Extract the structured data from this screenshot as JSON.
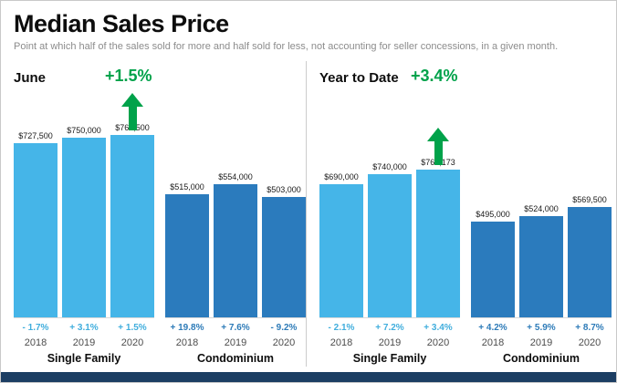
{
  "header": {
    "title": "Median Sales Price",
    "subtitle": "Point at which half of the sales sold for more and half sold for less, not accounting for seller concessions, in a given month."
  },
  "colors": {
    "single_family_bar": "#45b5e8",
    "condominium_bar": "#2b7bbd",
    "highlight_green": "#00a24a",
    "footer_navy": "#1c3e63"
  },
  "chart_data": [
    {
      "type": "bar",
      "panel": "June",
      "highlight": "+1.5%",
      "legend_position": "none",
      "grid": false,
      "groups": [
        {
          "label": "Single Family",
          "years": [
            "2018",
            "2019",
            "2020"
          ],
          "values": [
            727500,
            750000,
            761500
          ],
          "value_labels": [
            "$727,500",
            "$750,000",
            "$761,500"
          ],
          "pct_changes": [
            "- 1.7%",
            "+ 3.1%",
            "+ 1.5%"
          ]
        },
        {
          "label": "Condominium",
          "years": [
            "2018",
            "2019",
            "2020"
          ],
          "values": [
            515000,
            554000,
            503000
          ],
          "value_labels": [
            "$515,000",
            "$554,000",
            "$503,000"
          ],
          "pct_changes": [
            "+ 19.8%",
            "+ 7.6%",
            "- 9.2%"
          ]
        }
      ]
    },
    {
      "type": "bar",
      "panel": "Year to Date",
      "highlight": "+3.4%",
      "legend_position": "none",
      "grid": false,
      "groups": [
        {
          "label": "Single Family",
          "years": [
            "2018",
            "2019",
            "2020"
          ],
          "values": [
            690000,
            740000,
            765173
          ],
          "value_labels": [
            "$690,000",
            "$740,000",
            "$765,173"
          ],
          "pct_changes": [
            "- 2.1%",
            "+ 7.2%",
            "+ 3.4%"
          ]
        },
        {
          "label": "Condominium",
          "years": [
            "2018",
            "2019",
            "2020"
          ],
          "values": [
            495000,
            524000,
            569500
          ],
          "value_labels": [
            "$495,000",
            "$524,000",
            "$569,500"
          ],
          "pct_changes": [
            "+ 4.2%",
            "+ 5.9%",
            "+ 8.7%"
          ]
        }
      ]
    }
  ]
}
